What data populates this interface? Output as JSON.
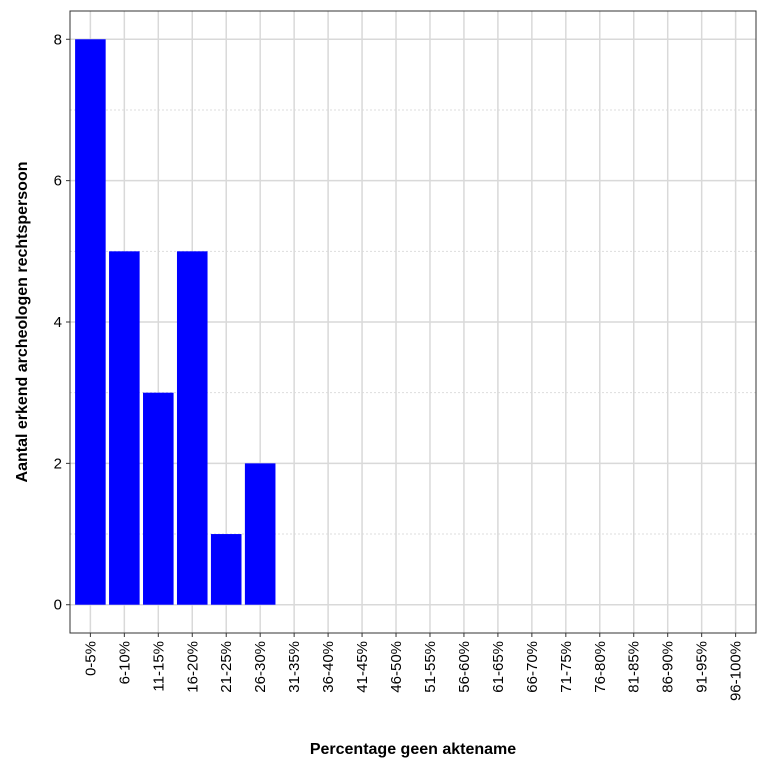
{
  "chart_data": {
    "type": "bar",
    "x_label": "Percentage geen aktename",
    "y_label": "Aantal erkend archeologen rechtspersoon",
    "categories": [
      "0-5%",
      "6-10%",
      "11-15%",
      "16-20%",
      "21-25%",
      "26-30%",
      "31-35%",
      "36-40%",
      "41-45%",
      "46-50%",
      "51-55%",
      "56-60%",
      "61-65%",
      "66-70%",
      "71-75%",
      "76-80%",
      "81-85%",
      "86-90%",
      "91-95%",
      "96-100%"
    ],
    "values": [
      8,
      5,
      3,
      5,
      1,
      2,
      0,
      0,
      0,
      0,
      0,
      0,
      0,
      0,
      0,
      0,
      0,
      0,
      0,
      0
    ],
    "color": "#0000ff",
    "ylim": [
      -0.4,
      8.4
    ],
    "yticks": [
      0,
      2,
      4,
      6,
      8
    ],
    "grid": true
  }
}
